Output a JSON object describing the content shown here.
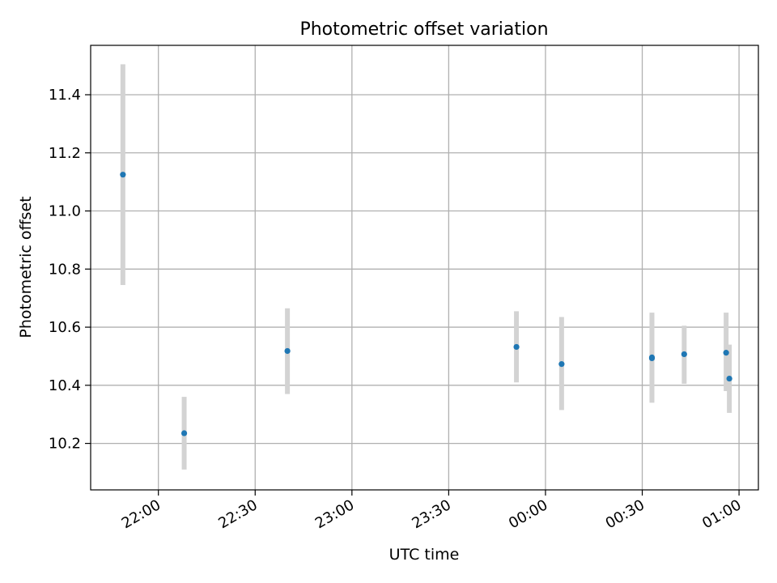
{
  "chart_data": {
    "type": "scatter",
    "title": "Photometric offset variation",
    "xlabel": "UTC time",
    "ylabel": "Photometric offset",
    "x_is_time": true,
    "xlim": [
      "21:39",
      "01:06"
    ],
    "ylim": [
      10.04,
      11.57
    ],
    "grid": true,
    "colors": {
      "point": "#1f77b4",
      "errorbar": "#d3d3d3",
      "grid": "#b0b0b0"
    },
    "x_ticks": [
      "22:00",
      "22:30",
      "23:00",
      "23:30",
      "00:00",
      "00:30",
      "01:00"
    ],
    "y_ticks": [
      10.2,
      10.4,
      10.6,
      10.8,
      11.0,
      11.2,
      11.4
    ],
    "y_tick_labels": [
      "10.2",
      "10.4",
      "10.6",
      "10.8",
      "11.0",
      "11.2",
      "11.4"
    ],
    "points": [
      {
        "x": "21:49",
        "y": 11.125,
        "ylo": 10.745,
        "yhi": 11.505
      },
      {
        "x": "22:08",
        "y": 10.235,
        "ylo": 10.11,
        "yhi": 10.36
      },
      {
        "x": "22:40",
        "y": 10.518,
        "ylo": 10.37,
        "yhi": 10.665
      },
      {
        "x": "23:51",
        "y": 10.532,
        "ylo": 10.41,
        "yhi": 10.655
      },
      {
        "x": "00:05",
        "y": 10.473,
        "ylo": 10.315,
        "yhi": 10.635
      },
      {
        "x": "00:33",
        "y": 10.496,
        "ylo": 10.34,
        "yhi": 10.65
      },
      {
        "x": "00:33",
        "y": 10.493,
        "ylo": 10.345,
        "yhi": 10.645
      },
      {
        "x": "00:43",
        "y": 10.507,
        "ylo": 10.405,
        "yhi": 10.605
      },
      {
        "x": "00:56",
        "y": 10.512,
        "ylo": 10.38,
        "yhi": 10.65
      },
      {
        "x": "00:57",
        "y": 10.423,
        "ylo": 10.305,
        "yhi": 10.54
      }
    ]
  }
}
